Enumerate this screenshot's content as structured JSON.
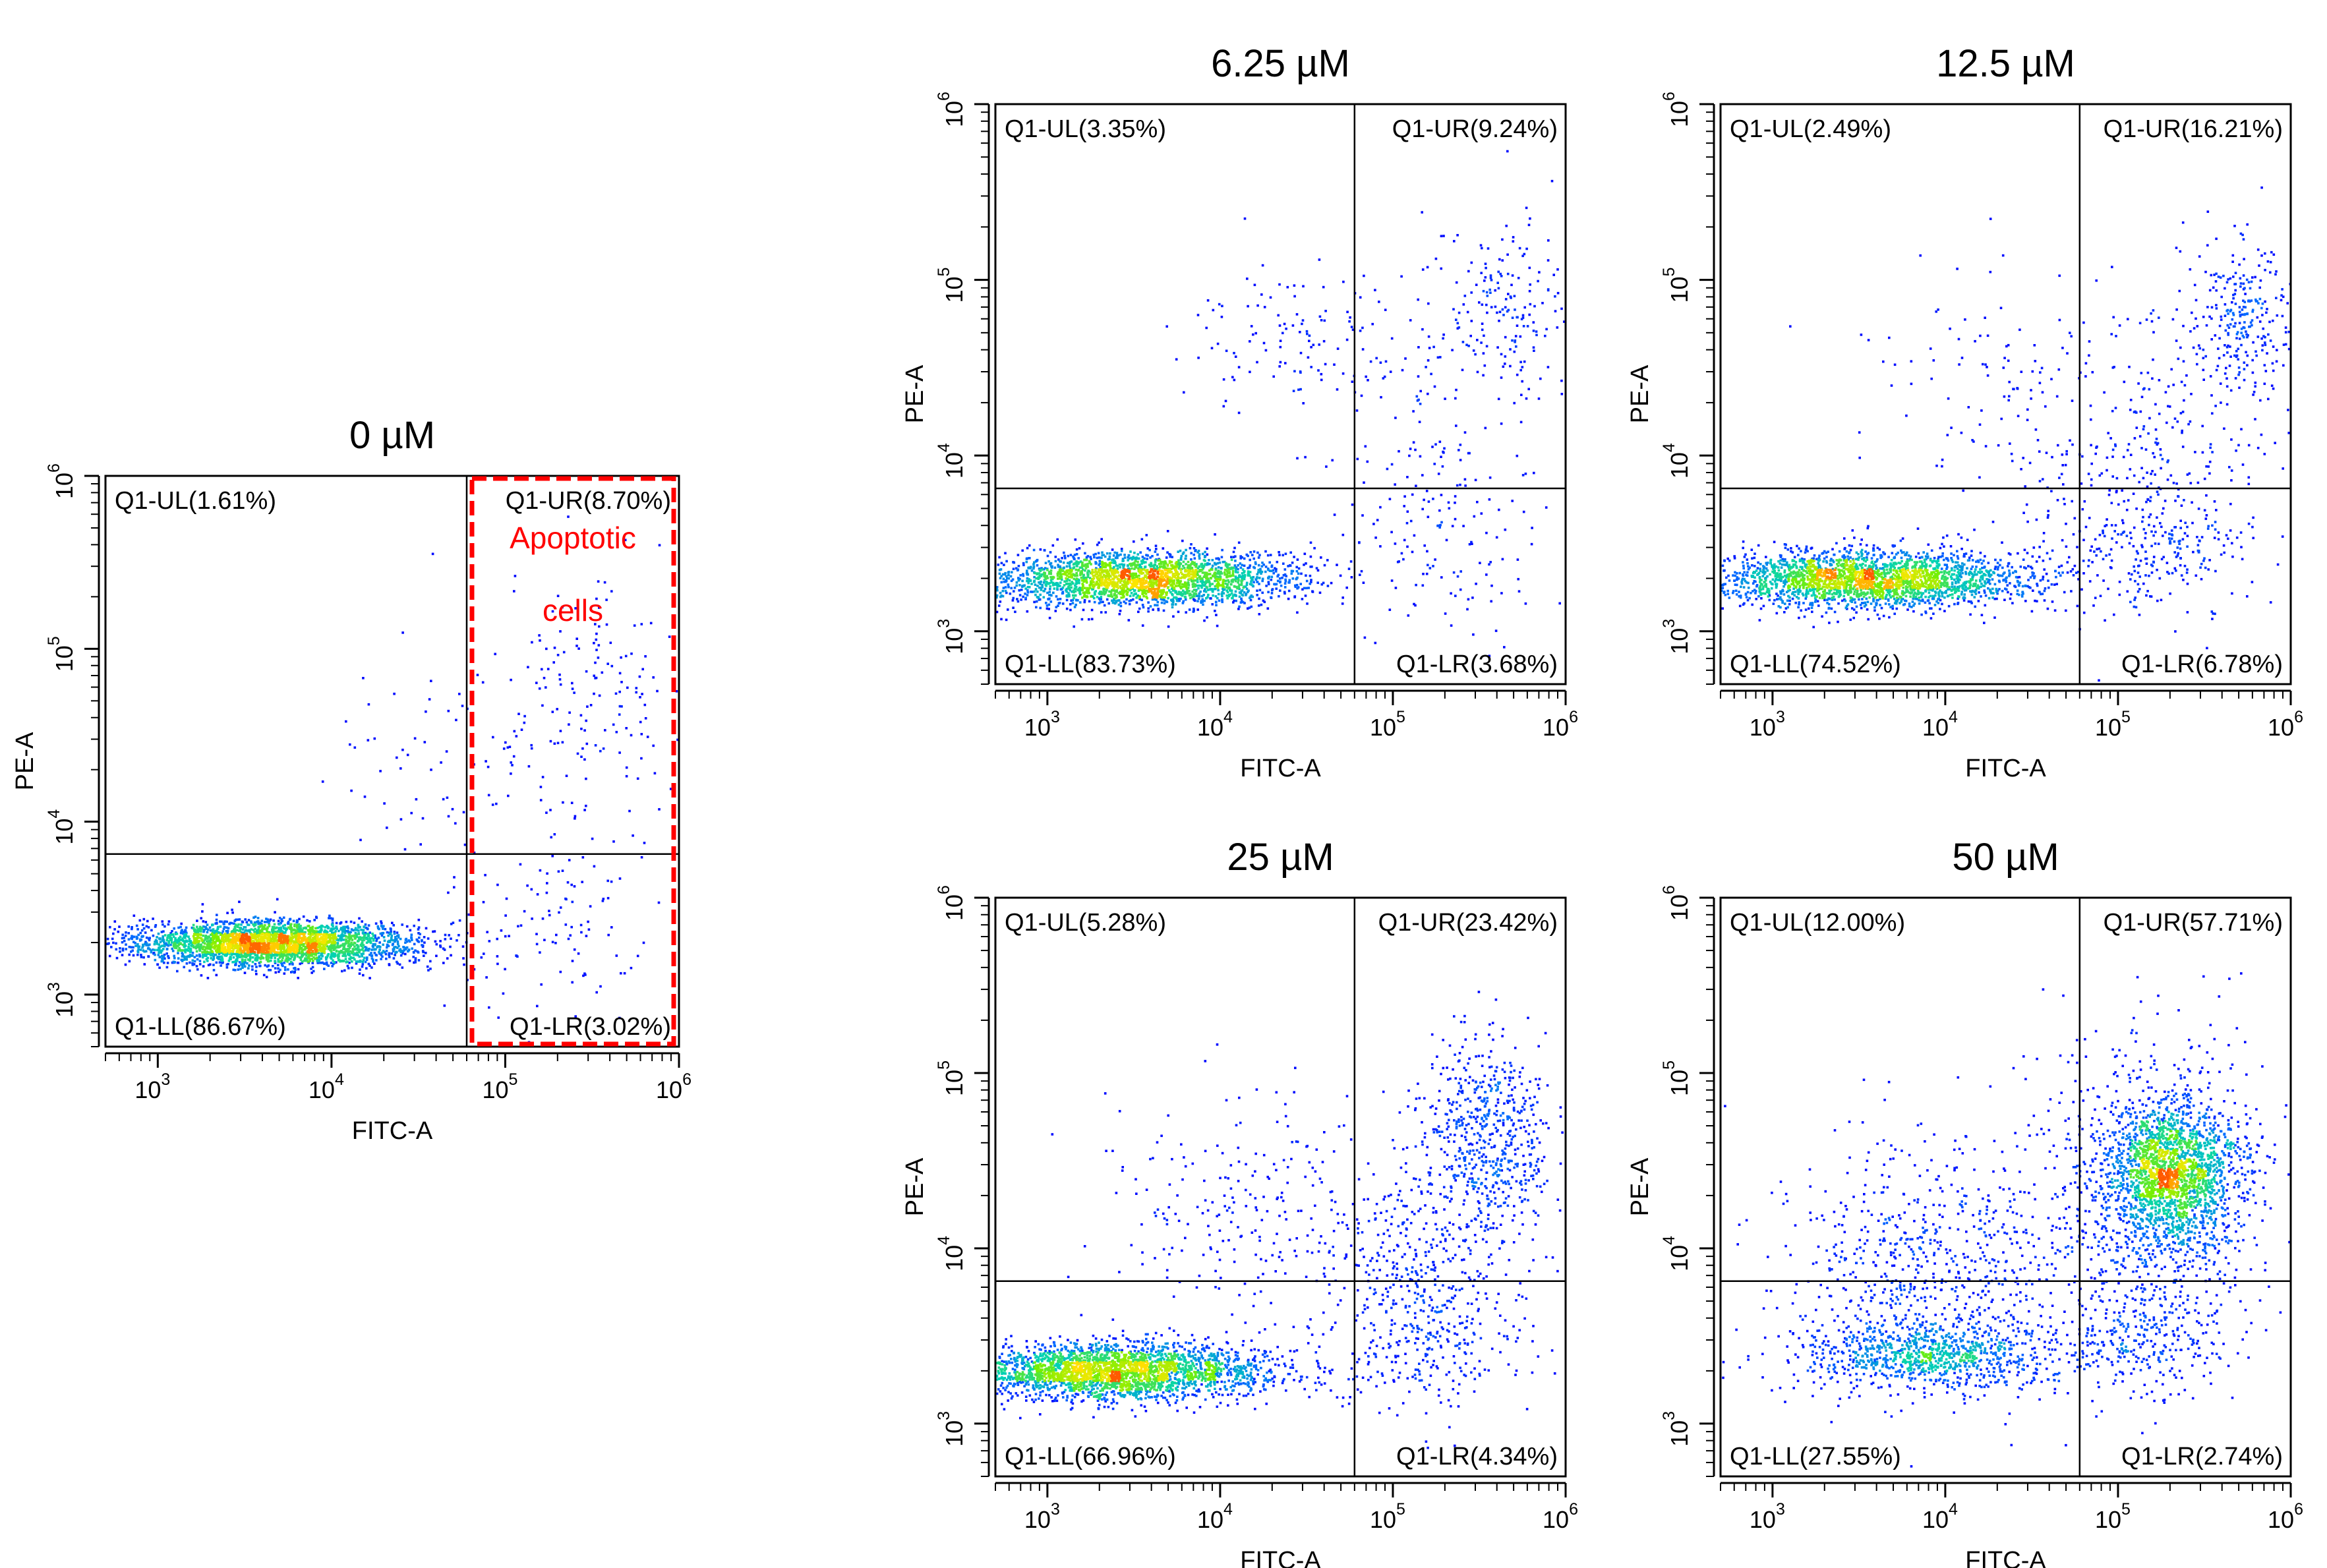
{
  "chart_data": [
    {
      "type": "scatter",
      "title": "0 µM",
      "xlabel": "FITC-A",
      "ylabel": "PE-A",
      "x_scale": "log",
      "y_scale": "log",
      "xlim": [
        500,
        1000000
      ],
      "ylim": [
        500,
        1000000
      ],
      "x_ticks": [
        "10",
        "10",
        "10",
        "10"
      ],
      "x_tick_exponents": [
        "3",
        "4",
        "5",
        "6"
      ],
      "y_ticks": [
        "10",
        "10",
        "10",
        "10"
      ],
      "y_tick_exponents": [
        "3",
        "4",
        "5",
        "6"
      ],
      "gate": {
        "x": 60000,
        "y": 6500
      },
      "quadrants": {
        "UL": {
          "label": "Q1-UL(1.61%)",
          "percent": 1.61
        },
        "UR": {
          "label": "Q1-UR(8.70%)",
          "percent": 8.7
        },
        "LL": {
          "label": "Q1-LL(86.67%)",
          "percent": 86.67
        },
        "LR": {
          "label": "Q1-LR(3.02%)",
          "percent": 3.02
        }
      },
      "annotation": {
        "lines": [
          "Apoptotic",
          "cells"
        ],
        "color": "#ff0000"
      },
      "clusters": [
        {
          "x": 4500,
          "y": 2000,
          "sx": 0.42,
          "sy": 0.065,
          "w": 0.865
        },
        {
          "x": 300000,
          "y": 60000,
          "sx": 0.3,
          "sy": 0.35,
          "w": 0.045
        },
        {
          "x": 40000,
          "y": 20000,
          "sx": 0.4,
          "sy": 0.35,
          "w": 0.02
        },
        {
          "x": 200000,
          "y": 2500,
          "sx": 0.3,
          "sy": 0.25,
          "w": 0.03
        }
      ]
    },
    {
      "type": "scatter",
      "title": "6.25 µM",
      "xlabel": "FITC-A",
      "ylabel": "PE-A",
      "x_scale": "log",
      "y_scale": "log",
      "xlim": [
        500,
        1000000
      ],
      "ylim": [
        500,
        1000000
      ],
      "x_ticks": [
        "10",
        "10",
        "10",
        "10"
      ],
      "x_tick_exponents": [
        "3",
        "4",
        "5",
        "6"
      ],
      "y_ticks": [
        "10",
        "10",
        "10",
        "10"
      ],
      "y_tick_exponents": [
        "3",
        "4",
        "5",
        "6"
      ],
      "gate": {
        "x": 60000,
        "y": 6500
      },
      "quadrants": {
        "UL": {
          "label": "Q1-UL(3.35%)",
          "percent": 3.35
        },
        "UR": {
          "label": "Q1-UR(9.24%)",
          "percent": 9.24
        },
        "LL": {
          "label": "Q1-LL(83.73%)",
          "percent": 83.73
        },
        "LR": {
          "label": "Q1-LR(3.68%)",
          "percent": 3.68
        }
      },
      "clusters": [
        {
          "x": 3500,
          "y": 2000,
          "sx": 0.45,
          "sy": 0.08,
          "w": 0.83
        },
        {
          "x": 450000,
          "y": 70000,
          "sx": 0.2,
          "sy": 0.25,
          "w": 0.06
        },
        {
          "x": 30000,
          "y": 50000,
          "sx": 0.35,
          "sy": 0.2,
          "w": 0.04
        },
        {
          "x": 200000,
          "y": 3000,
          "sx": 0.3,
          "sy": 0.25,
          "w": 0.035
        },
        {
          "x": 150000,
          "y": 15000,
          "sx": 0.3,
          "sy": 0.4,
          "w": 0.035
        }
      ]
    },
    {
      "type": "scatter",
      "title": "12.5 µM",
      "xlabel": "FITC-A",
      "ylabel": "PE-A",
      "x_scale": "log",
      "y_scale": "log",
      "xlim": [
        500,
        1000000
      ],
      "ylim": [
        500,
        1000000
      ],
      "x_ticks": [
        "10",
        "10",
        "10",
        "10"
      ],
      "x_tick_exponents": [
        "3",
        "4",
        "5",
        "6"
      ],
      "y_ticks": [
        "10",
        "10",
        "10",
        "10"
      ],
      "y_tick_exponents": [
        "3",
        "4",
        "5",
        "6"
      ],
      "gate": {
        "x": 60000,
        "y": 6500
      },
      "quadrants": {
        "UL": {
          "label": "Q1-UL(2.49%)",
          "percent": 2.49
        },
        "UR": {
          "label": "Q1-UR(16.21%)",
          "percent": 16.21
        },
        "LL": {
          "label": "Q1-LL(74.52%)",
          "percent": 74.52
        },
        "LR": {
          "label": "Q1-LR(6.78%)",
          "percent": 6.78
        }
      },
      "clusters": [
        {
          "x": 3500,
          "y": 2000,
          "sx": 0.45,
          "sy": 0.08,
          "w": 0.74
        },
        {
          "x": 500000,
          "y": 60000,
          "sx": 0.15,
          "sy": 0.25,
          "w": 0.08
        },
        {
          "x": 150000,
          "y": 10000,
          "sx": 0.35,
          "sy": 0.45,
          "w": 0.08
        },
        {
          "x": 150000,
          "y": 3000,
          "sx": 0.3,
          "sy": 0.2,
          "w": 0.07
        },
        {
          "x": 20000,
          "y": 25000,
          "sx": 0.4,
          "sy": 0.35,
          "w": 0.03
        }
      ]
    },
    {
      "type": "scatter",
      "title": "25 µM",
      "xlabel": "FITC-A",
      "ylabel": "PE-A",
      "x_scale": "log",
      "y_scale": "log",
      "xlim": [
        500,
        1000000
      ],
      "ylim": [
        500,
        1000000
      ],
      "x_ticks": [
        "10",
        "10",
        "10",
        "10"
      ],
      "x_tick_exponents": [
        "3",
        "4",
        "5",
        "6"
      ],
      "y_ticks": [
        "10",
        "10",
        "10",
        "10"
      ],
      "y_tick_exponents": [
        "3",
        "4",
        "5",
        "6"
      ],
      "gate": {
        "x": 60000,
        "y": 6500
      },
      "quadrants": {
        "UL": {
          "label": "Q1-UL(5.28%)",
          "percent": 5.28
        },
        "UR": {
          "label": "Q1-UR(23.42%)",
          "percent": 23.42
        },
        "LL": {
          "label": "Q1-LL(66.96%)",
          "percent": 66.96
        },
        "LR": {
          "label": "Q1-LR(4.34%)",
          "percent": 4.34
        }
      },
      "clusters": [
        {
          "x": 2500,
          "y": 2000,
          "sx": 0.45,
          "sy": 0.08,
          "w": 0.66
        },
        {
          "x": 350000,
          "y": 45000,
          "sx": 0.18,
          "sy": 0.28,
          "w": 0.14
        },
        {
          "x": 150000,
          "y": 8000,
          "sx": 0.3,
          "sy": 0.35,
          "w": 0.09
        },
        {
          "x": 15000,
          "y": 15000,
          "sx": 0.45,
          "sy": 0.35,
          "w": 0.06
        },
        {
          "x": 150000,
          "y": 3000,
          "sx": 0.3,
          "sy": 0.2,
          "w": 0.05
        }
      ]
    },
    {
      "type": "scatter",
      "title": "50 µM",
      "xlabel": "FITC-A",
      "ylabel": "PE-A",
      "x_scale": "log",
      "y_scale": "log",
      "xlim": [
        500,
        1000000
      ],
      "ylim": [
        500,
        1000000
      ],
      "x_ticks": [
        "10",
        "10",
        "10",
        "10"
      ],
      "x_tick_exponents": [
        "3",
        "4",
        "5",
        "6"
      ],
      "y_ticks": [
        "10",
        "10",
        "10",
        "10"
      ],
      "y_tick_exponents": [
        "3",
        "4",
        "5",
        "6"
      ],
      "gate": {
        "x": 60000,
        "y": 6500
      },
      "quadrants": {
        "UL": {
          "label": "Q1-UL(12.00%)",
          "percent": 12.0
        },
        "UR": {
          "label": "Q1-UR(57.71%)",
          "percent": 57.71
        },
        "LL": {
          "label": "Q1-LL(27.55%)",
          "percent": 27.55
        },
        "LR": {
          "label": "Q1-LR(2.74%)",
          "percent": 2.74
        }
      },
      "clusters": [
        {
          "x": 200000,
          "y": 28000,
          "sx": 0.18,
          "sy": 0.2,
          "w": 0.38
        },
        {
          "x": 150000,
          "y": 20000,
          "sx": 0.35,
          "sy": 0.45,
          "w": 0.2
        },
        {
          "x": 8000,
          "y": 2500,
          "sx": 0.4,
          "sy": 0.1,
          "w": 0.2
        },
        {
          "x": 8000,
          "y": 8000,
          "sx": 0.45,
          "sy": 0.35,
          "w": 0.15
        },
        {
          "x": 150000,
          "y": 3000,
          "sx": 0.25,
          "sy": 0.15,
          "w": 0.05
        }
      ]
    }
  ]
}
